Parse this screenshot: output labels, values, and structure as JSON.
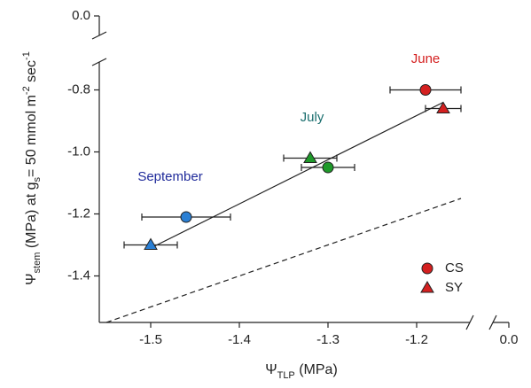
{
  "chart_data": {
    "type": "scatter",
    "xlabel": [
      "Ψ",
      "TLP",
      " (MPa)"
    ],
    "ylabel": [
      "Ψ",
      "stem",
      " (MPa) at g",
      "s",
      "= 50 mmol m",
      "-2",
      " sec",
      "-1"
    ],
    "xlim": [
      -1.55,
      -1.14
    ],
    "ylim": [
      -1.55,
      -0.71
    ],
    "axis_break": true,
    "xticks": [
      -1.5,
      -1.4,
      -1.3,
      -1.2,
      {
        "value": 0,
        "label": "0.0"
      }
    ],
    "yticks": [
      -1.4,
      -1.2,
      {
        "value": -1,
        "label": "-1.0"
      },
      -0.8,
      {
        "value": 0,
        "label": "0.0"
      }
    ],
    "legend": "lower right",
    "legend_color": "#d42020",
    "series": [
      {
        "name": "CS",
        "marker": "circle",
        "x": [
          -1.19,
          -1.3,
          -1.46
        ],
        "xerr": [
          0.04,
          0.03,
          0.05
        ],
        "values": [
          -0.8,
          -1.05,
          -1.21
        ],
        "colors": [
          "#d42020",
          "#1f9a2a",
          "#2a7fd4"
        ]
      },
      {
        "name": "SY",
        "marker": "triangle",
        "x": [
          -1.17,
          -1.32,
          -1.5
        ],
        "xerr": [
          0.02,
          0.03,
          0.03
        ],
        "values": [
          -0.86,
          -1.02,
          -1.3
        ],
        "colors": [
          "#d42020",
          "#1f9a2a",
          "#2a7fd4"
        ]
      }
    ],
    "fit_line": {
      "x": [
        -1.5,
        -1.17
      ],
      "values": [
        -1.31,
        -0.84
      ]
    },
    "reference_line": {
      "x": [
        -1.55,
        -1.15
      ],
      "values": [
        -1.55,
        -1.15
      ]
    },
    "annotations": [
      {
        "text": "June",
        "color": "#d42020"
      },
      {
        "text": "July",
        "color": "#1a6e6e"
      },
      {
        "text": "September",
        "color": "#1f2a9a"
      }
    ]
  }
}
